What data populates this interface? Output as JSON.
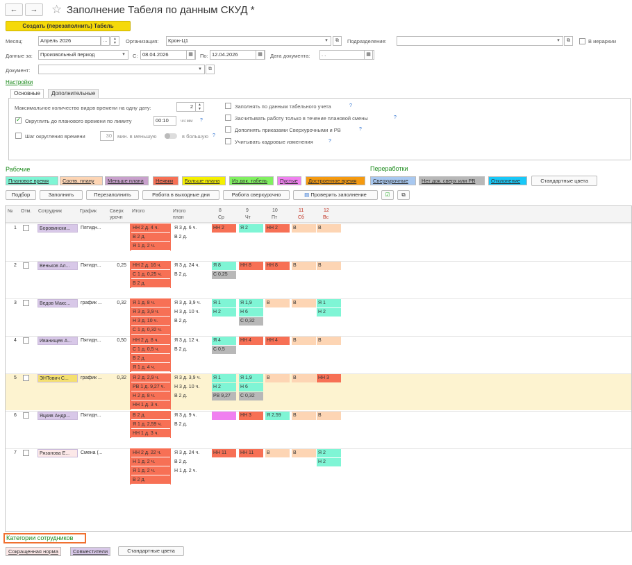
{
  "header": {
    "back": "←",
    "forward": "→",
    "title": "Заполнение Табеля по данным СКУД *",
    "create_button": "Создать (перезаполнить) Табель"
  },
  "form": {
    "month_label": "Месяц:",
    "month_value": "Апрель 2026",
    "org_label": "Организация:",
    "org_value": "Крон-Ц1",
    "dept_label": "Подразделение:",
    "dept_value": "",
    "hierarchy_label": "В иерархии",
    "data_label": "Данные за:",
    "data_value": "Произвольный период",
    "from_label": "С:",
    "from_value": "08.04.2026",
    "to_label": "По:",
    "to_value": "12.04.2026",
    "docdate_label": "Дата документа:",
    "docdate_value": ". .",
    "doc_label": "Документ:",
    "doc_value": ""
  },
  "settings_link": "Настройки",
  "tabs": [
    "Основные",
    "Дополнительные"
  ],
  "settings": {
    "max_types_label": "Максимальное количество видов времени на одну дату:",
    "max_types_value": "2",
    "round_label": "Округлить до планового времени по лимиту",
    "round_value": "00:10",
    "round_unit": "чч:мм",
    "q": "?",
    "step_label": "Шаг округления времени",
    "step_value": "30",
    "step_unit": "мин. в меньшую",
    "step_unit2": "в большую",
    "right": [
      "Заполнять по данным табельного учета",
      "Засчитывать работу только в течение плановой смены",
      "Дополнять приказами Сверхурочными и РВ",
      "Учитывать кадровые изменения"
    ]
  },
  "legend": {
    "working_title": "Рабочие",
    "overtime_title": "Переработки",
    "working": [
      {
        "label": "Плановое время",
        "bg": "#7ff5d5"
      },
      {
        "label": "Соотв. плану",
        "bg": "#fdd5b4"
      },
      {
        "label": "Меньше плана",
        "bg": "#c8a0cc"
      },
      {
        "label": "Неявки",
        "bg": "#f77055"
      },
      {
        "label": "Больше плана",
        "bg": "#f5f000"
      },
      {
        "label": "Из док. табель",
        "bg": "#80f060"
      },
      {
        "label": "Пустые",
        "bg": "#f080f0"
      },
      {
        "label": "Достроенное время",
        "bg": "#f59a10"
      }
    ],
    "overtime": [
      {
        "label": "Сверхурочные",
        "bg": "#a8c8f0"
      },
      {
        "label": "Нет док. сверх или РВ",
        "bg": "#b8b8b8"
      },
      {
        "label": "Отклонение",
        "bg": "#18c8f8"
      }
    ],
    "std_colors": "Стандартные цвета"
  },
  "toolbar": [
    "Подбор",
    "Заполнить",
    "Перезаполнить",
    "Работа в выходные дни",
    "Работа сверхурочно",
    "Проверить заполнение"
  ],
  "table": {
    "headers": {
      "n": "№",
      "otm": "Отм.",
      "emp": "Сотрудник",
      "sched": "График",
      "over1": "Сверх",
      "over2": "урочн",
      "total": "Итого",
      "plan1": "Итого",
      "plan2": "план",
      "days": [
        {
          "num": "8",
          "dow": "Ср"
        },
        {
          "num": "9",
          "dow": "Чт"
        },
        {
          "num": "10",
          "dow": "Пт"
        },
        {
          "num": "11",
          "dow": "Сб"
        },
        {
          "num": "12",
          "dow": "Вс"
        }
      ]
    },
    "employees": [
      {
        "n": "1",
        "name": "Боровински...",
        "sched": "Пятидн...",
        "over": "",
        "totals": [
          "НН 2 д. 4 ч.",
          "В 2 д.",
          "Я 1 д. 2 ч."
        ],
        "plan": [
          "Я 3 д. 6 ч.",
          "В 2 д."
        ],
        "days": [
          [
            "НН 2"
          ],
          [
            "Я 2"
          ],
          [
            "НН 2"
          ],
          [
            "В"
          ],
          [
            "В"
          ]
        ]
      },
      {
        "n": "2",
        "name": "Веньков Ал...",
        "sched": "Пятидн...",
        "over": "0,25",
        "totals": [
          "НН 2 д. 16 ч.",
          "С 1 д. 0,25 ч.",
          "В 2 д."
        ],
        "plan": [
          "Я 3 д. 24 ч.",
          "В 2 д."
        ],
        "days": [
          [
            "Я 8",
            "С 0,25"
          ],
          [
            "НН 8"
          ],
          [
            "НН 8"
          ],
          [
            "В"
          ],
          [
            "В"
          ]
        ]
      },
      {
        "n": "3",
        "name": "Ведов Макс...",
        "sched": "график ...",
        "over": "0,32",
        "totals": [
          "Я 1 д. 8 ч.",
          "Я 3 д. 3,9 ч.",
          "Н 3 д. 10 ч.",
          "С 1 д. 0,32 ч.",
          "В 2 д."
        ],
        "plan": [
          "Я 3 д. 3,9 ч.",
          "Н 3 д. 10 ч.",
          "В 2 д."
        ],
        "days": [
          [
            "Я 1",
            "Н 2"
          ],
          [
            "Я 1,9",
            "Н 6",
            "С 0,32"
          ],
          [
            "В"
          ],
          [
            "В"
          ],
          [
            "Я 1",
            "Н 2"
          ]
        ]
      },
      {
        "n": "4",
        "name": "Иванищев А...",
        "sched": "Пятидн...",
        "over": "0,50",
        "totals": [
          "НН 2 д. 8 ч.",
          "С 1 д. 0,5 ч.",
          "В 2 д.",
          "Я 1 д. 4 ч."
        ],
        "plan": [
          "Я 3 д. 12 ч.",
          "В 2 д."
        ],
        "days": [
          [
            "Я 4",
            "С 0,5"
          ],
          [
            "НН 4"
          ],
          [
            "НН 4"
          ],
          [
            "В"
          ],
          [
            "В"
          ]
        ]
      },
      {
        "n": "5",
        "name": "ЭНТович С...",
        "sched": "график ...",
        "over": "0,32",
        "totals": [
          "Я 2 д. 2,9 ч.",
          "РВ 1 д. 9,27 ч.",
          "Н 2 д. 8 ч.",
          "НН 1 д. 3 ч."
        ],
        "plan": [
          "Я 3 д. 3,9 ч.",
          "Н 3 д. 10 ч.",
          "В 2 д."
        ],
        "days": [
          [
            "Я 1",
            "Н 2",
            "РВ 9,27"
          ],
          [
            "Я 1,9",
            "Н 6",
            "С 0,32"
          ],
          [
            "В"
          ],
          [
            "В"
          ],
          [
            "НН 3"
          ]
        ]
      },
      {
        "n": "6",
        "name": "Яцкив Андр...",
        "sched": "Пятидн...",
        "over": "",
        "totals": [
          "В 2 д.",
          "Я 1 д. 2,59 ч.",
          "НН 1 д. 3 ч."
        ],
        "plan": [
          "Я 3 д. 9 ч.",
          "В 2 д."
        ],
        "days": [
          [
            ""
          ],
          [
            "НН 3"
          ],
          [
            "Я 2,59"
          ],
          [
            "В"
          ],
          [
            "В"
          ]
        ]
      },
      {
        "n": "7",
        "name": "Рязанова Е...",
        "sched": "Смена (...",
        "over": "",
        "totals": [
          "НН 2 д. 22 ч.",
          "Н 1 д. 2 ч.",
          "Я 1 д. 2 ч.",
          "В 2 д."
        ],
        "plan": [
          "Я 3 д. 24 ч.",
          "В 2 д.",
          "Н 1 д. 2 ч."
        ],
        "days": [
          [
            "НН 11"
          ],
          [
            "НН 11"
          ],
          [
            "В"
          ],
          [
            "В"
          ],
          [
            "Я 2",
            "Н 2"
          ]
        ]
      }
    ]
  },
  "categories": {
    "title": "Категории сотрудников",
    "items": [
      {
        "label": "Сокращенная норма",
        "bg": "#fce8e8"
      },
      {
        "label": "Совместители",
        "bg": "#d8c8e8"
      }
    ],
    "std": "Стандартные цвета"
  }
}
